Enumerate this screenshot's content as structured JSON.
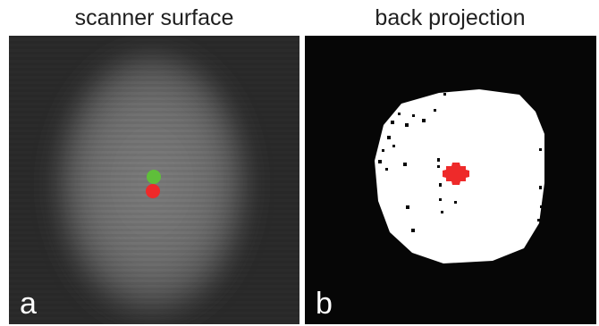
{
  "panels": [
    {
      "title": "scanner surface",
      "letter": "a",
      "markers": [
        {
          "name": "green-marker",
          "color": "#5fbf3a"
        },
        {
          "name": "red-marker",
          "color": "#ee2a2a"
        }
      ]
    },
    {
      "title": "back projection",
      "letter": "b",
      "markers": [
        {
          "name": "red-marker",
          "color": "#ee2a2a"
        }
      ]
    }
  ]
}
